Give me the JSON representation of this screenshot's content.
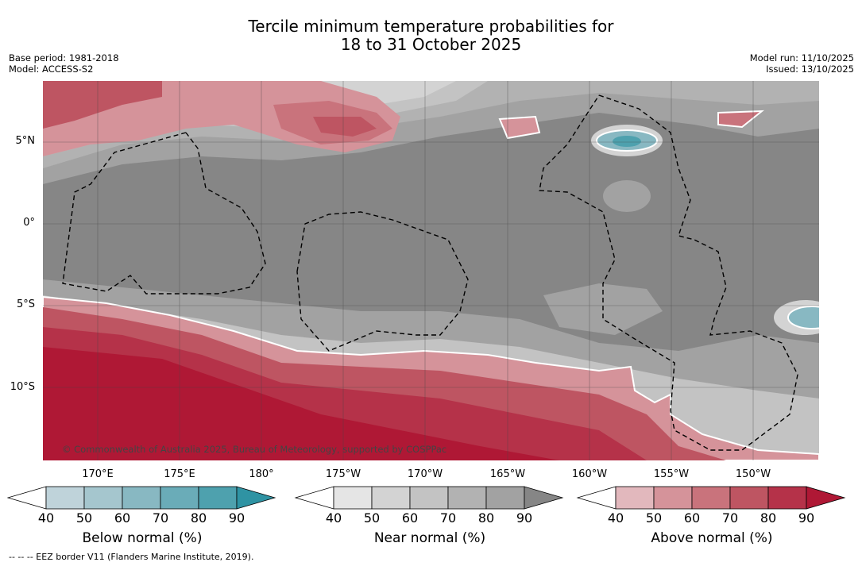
{
  "title_line1": "Tercile minimum temperature probabilities for",
  "title_line2": "18 to 31 October 2025",
  "base_period": "Base period: 1981-2018",
  "model": "Model: ACCESS-S2",
  "model_run": "Model run: 11/10/2025",
  "issued": "Issued: 13/10/2025",
  "lat_labels": [
    "5°N",
    "0°",
    "5°S",
    "10°S"
  ],
  "lon_labels": [
    "170°E",
    "175°E",
    "180°",
    "175°W",
    "170°W",
    "165°W",
    "160°W",
    "155°W",
    "150°W"
  ],
  "copyright": "© Commonwealth of Australia 2025, Bureau of Meteorology, supported by COSPPac",
  "colorbars": [
    {
      "label": "Below normal (%)",
      "ticks": [
        "40",
        "50",
        "60",
        "70",
        "80",
        "90"
      ],
      "colors": [
        "#ffffff",
        "#bfd3da",
        "#a5c6ce",
        "#88b8c2",
        "#6aacb8",
        "#4ea1ae",
        "#2f93a3"
      ]
    },
    {
      "label": "Near normal (%)",
      "ticks": [
        "40",
        "50",
        "60",
        "70",
        "80",
        "90"
      ],
      "colors": [
        "#ffffff",
        "#e5e5e5",
        "#d3d3d3",
        "#c3c3c3",
        "#b2b2b2",
        "#a2a2a2",
        "#868686"
      ]
    },
    {
      "label": "Above normal (%)",
      "ticks": [
        "40",
        "50",
        "60",
        "70",
        "80",
        "90"
      ],
      "colors": [
        "#ffffff",
        "#e2b8bd",
        "#d5939a",
        "#c9737c",
        "#be5562",
        "#b53249",
        "#af1835"
      ]
    }
  ],
  "footnote": "--  --  -- EEZ border V11 (Flanders Marine Institute, 2019)."
}
